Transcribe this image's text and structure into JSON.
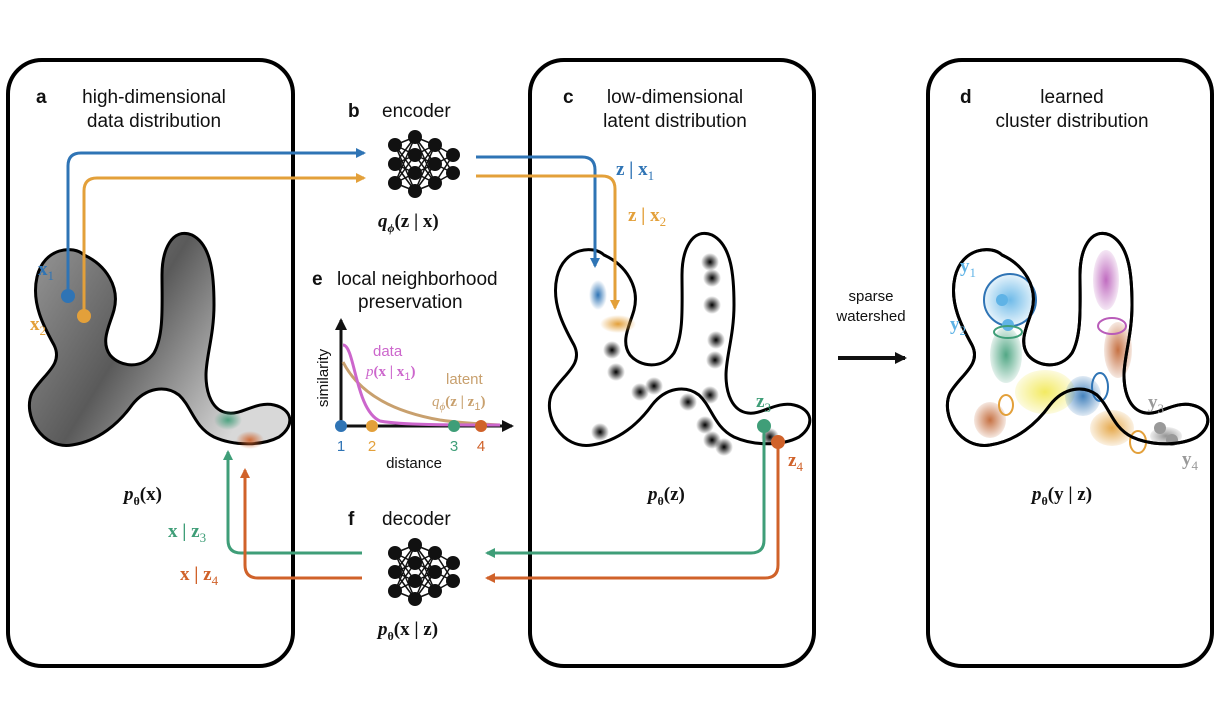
{
  "panels": {
    "a": {
      "letter": "a",
      "title_line1": "high-dimensional",
      "title_line2": "data distribution",
      "dist": "pθ(x)"
    },
    "b": {
      "letter": "b",
      "title": "encoder",
      "formula": "qϕ(z | x)"
    },
    "c": {
      "letter": "c",
      "title_line1": "low-dimensional",
      "title_line2": "latent distribution",
      "dist": "pθ(z)"
    },
    "d": {
      "letter": "d",
      "title_line1": "learned",
      "title_line2": "cluster distribution",
      "dist": "pθ(y | z)"
    },
    "e": {
      "letter": "e",
      "title_line1": "local neighborhood",
      "title_line2": "preservation"
    },
    "f": {
      "letter": "f",
      "title": "decoder",
      "formula": "pθ(x | z)"
    }
  },
  "labels": {
    "x1": "x1",
    "x2": "x2",
    "z_x1": "z | x1",
    "z_x2": "z | x2",
    "z3": "z3",
    "z4": "z4",
    "x_z3": "x | z3",
    "x_z4": "x | z4",
    "y1": "y1",
    "y2": "y2",
    "y3": "y3",
    "y4": "y4",
    "sparse_watershed_line1": "sparse",
    "sparse_watershed_line2": "watershed"
  },
  "chart_data": {
    "type": "line",
    "xlabel": "distance",
    "ylabel": "similarity",
    "tick_labels": [
      "1",
      "2",
      "3",
      "4"
    ],
    "series": [
      {
        "name": "data",
        "formula": "p(x | x1)",
        "color": "#cc66cc"
      },
      {
        "name": "latent",
        "formula": "qϕ(z | z1)",
        "color": "#c8a06e"
      }
    ]
  },
  "colors": {
    "blue": "#2f74b5",
    "orange": "#e3a03a",
    "green": "#3f9e78",
    "red": "#d0622a",
    "pink": "#cc66cc",
    "tan": "#c8a06e",
    "lightblue": "#5fb3e6",
    "gray": "#999999"
  }
}
